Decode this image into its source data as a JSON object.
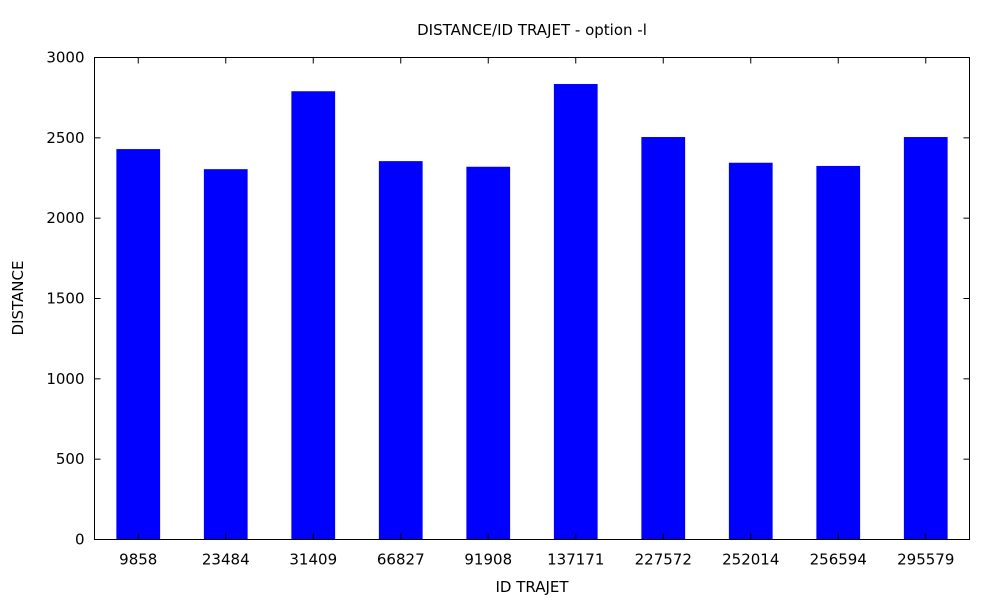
{
  "chart_data": {
    "type": "bar",
    "title": "DISTANCE/ID TRAJET - option -l",
    "xlabel": "ID TRAJET",
    "ylabel": "DISTANCE",
    "categories": [
      "9858",
      "23484",
      "31409",
      "66827",
      "91908",
      "137171",
      "227572",
      "252014",
      "256594",
      "295579"
    ],
    "series": [
      {
        "values": [
          2430,
          2305,
          2790,
          2355,
          2320,
          2835,
          2505,
          2345,
          2325,
          2505
        ],
        "color": "#0000ff"
      }
    ],
    "ylim": [
      0,
      3000
    ],
    "yticks": [
      0,
      500,
      1000,
      1500,
      2000,
      2500,
      3000
    ],
    "grid": false,
    "legend": "none"
  }
}
